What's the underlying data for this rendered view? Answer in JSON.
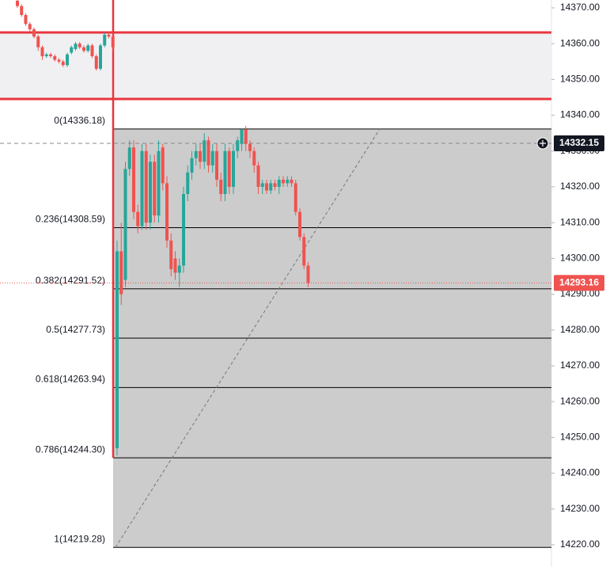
{
  "chart_data": {
    "type": "candlestick",
    "up_color": "#26a69a",
    "down_color": "#ef5350",
    "ylim": [
      14213.8,
      14372.2
    ],
    "yticks": [
      {
        "value": 14220,
        "label": "14220.00"
      },
      {
        "value": 14230,
        "label": "14230.00"
      },
      {
        "value": 14240,
        "label": "14240.00"
      },
      {
        "value": 14250,
        "label": "14250.00"
      },
      {
        "value": 14260,
        "label": "14260.00"
      },
      {
        "value": 14270,
        "label": "14270.00"
      },
      {
        "value": 14280,
        "label": "14280.00"
      },
      {
        "value": 14290,
        "label": "14290.00"
      },
      {
        "value": 14300,
        "label": "14300.00"
      },
      {
        "value": 14310,
        "label": "14310.00"
      },
      {
        "value": 14320,
        "label": "14320.00"
      },
      {
        "value": 14330,
        "label": "14330.00"
      },
      {
        "value": 14340,
        "label": "14340.00"
      },
      {
        "value": 14350,
        "label": "14350.00"
      },
      {
        "value": 14360,
        "label": "14360.00"
      },
      {
        "value": 14370,
        "label": "14370.00"
      }
    ],
    "open": [
      14372,
      14370.5,
      14368,
      14365.5,
      14364,
      14362,
      14359,
      14356.5,
      14357,
      14356.5,
      14355.5,
      14355,
      14354,
      14357.5,
      14358.5,
      14360,
      14359,
      14358,
      14359.5,
      14356.5,
      14353,
      14359.5,
      14362.5,
      14362,
      14247,
      14302,
      14294,
      14325,
      14331,
      14313,
      14309,
      14330,
      14310,
      14327,
      14312,
      14331,
      14321,
      14305,
      14300,
      14296,
      14298,
      14318,
      14324,
      14328,
      14330,
      14327,
      14333,
      14326,
      14330,
      14322,
      14318,
      14330,
      14320,
      14330,
      14332,
      14336,
      14332,
      14330,
      14326,
      14320,
      14321,
      14319,
      14321,
      14320,
      14322,
      14321,
      14322,
      14321,
      14313,
      14306,
      14298
    ],
    "high": [
      14372.5,
      14371,
      14368.5,
      14366,
      14364.5,
      14362.5,
      14359.5,
      14357.5,
      14357.5,
      14357,
      14356,
      14355.5,
      14357.5,
      14359.5,
      14360.5,
      14360.5,
      14359.5,
      14360,
      14360,
      14357,
      14360,
      14363,
      14363,
      14363,
      14305,
      14310,
      14327,
      14333,
      14333,
      14315,
      14332,
      14332,
      14329,
      14329,
      14333,
      14332,
      14323,
      14307,
      14302,
      14300,
      14320,
      14326,
      14330,
      14332,
      14332,
      14335,
      14334,
      14332,
      14332,
      14324,
      14332,
      14331,
      14332,
      14334,
      14336.18,
      14337,
      14333,
      14331,
      14327,
      14322,
      14322,
      14322,
      14322,
      14323,
      14323,
      14323,
      14323,
      14322,
      14314,
      14307,
      14299
    ],
    "low": [
      14370,
      14367.5,
      14365,
      14363.5,
      14361.5,
      14358,
      14355.5,
      14356,
      14356,
      14355,
      14354.5,
      14353.5,
      14353.5,
      14357,
      14358,
      14358.5,
      14357.5,
      14357.5,
      14356,
      14352.5,
      14352.5,
      14359,
      14361.5,
      14357.5,
      14245,
      14287,
      14292,
      14323,
      14311,
      14307,
      14308,
      14308,
      14308,
      14310,
      14310,
      14319,
      14303,
      14295,
      14294,
      14292,
      14296,
      14316,
      14322,
      14326,
      14325,
      14325,
      14324,
      14324,
      14320,
      14316,
      14316,
      14318,
      14318,
      14328,
      14330,
      14330,
      14328,
      14324,
      14318,
      14318,
      14318,
      14318,
      14319,
      14318,
      14320,
      14320,
      14320,
      14312,
      14305,
      14297,
      14292
    ],
    "close": [
      14370.5,
      14368,
      14365.5,
      14364,
      14362,
      14359,
      14356.5,
      14357,
      14356.5,
      14355.5,
      14355,
      14354,
      14357,
      14359,
      14360,
      14359,
      14358,
      14359.5,
      14356.5,
      14353,
      14359.5,
      14362.5,
      14362,
      14359,
      14302,
      14290,
      14325,
      14331,
      14313,
      14309,
      14330,
      14310,
      14327,
      14312,
      14330,
      14321,
      14305,
      14297,
      14296,
      14298,
      14318,
      14324,
      14328,
      14330,
      14327,
      14333,
      14326,
      14330,
      14322,
      14318,
      14330,
      14320,
      14330,
      14333,
      14336,
      14332,
      14330,
      14326,
      14320,
      14321,
      14319,
      14321,
      14320,
      14322,
      14321,
      14322,
      14321,
      14313,
      14306,
      14298,
      14293.16
    ],
    "fib_levels": [
      {
        "value": 14336.18,
        "label": "0(14336.18)"
      },
      {
        "value": 14308.59,
        "label": "0.236(14308.59)"
      },
      {
        "value": 14291.52,
        "label": "0.382(14291.52)"
      },
      {
        "value": 14277.73,
        "label": "0.5(14277.73)"
      },
      {
        "value": 14263.94,
        "label": "0.618(14263.94)"
      },
      {
        "value": 14244.3,
        "label": "0.786(14244.30)"
      },
      {
        "value": 14219.28,
        "label": "1(14219.28)"
      }
    ],
    "crosshair_price": 14332.15,
    "last_price": 14293.16
  }
}
